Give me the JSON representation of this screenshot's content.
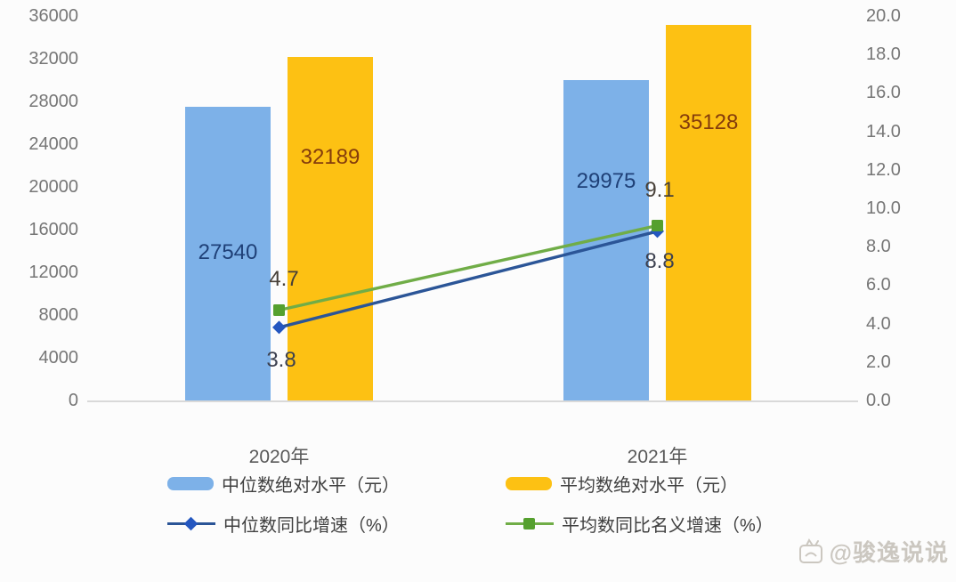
{
  "colors": {
    "background": "#FCFCFC",
    "axis_line": "#D9D9D9",
    "tick_text": "#767676",
    "category_text": "#595959",
    "legend_text": "#404040",
    "watermark": "#CBC7C0"
  },
  "chart_data": {
    "type": "combo-bar-line",
    "title": "",
    "categories": [
      "2020年",
      "2021年"
    ],
    "bar_series": [
      {
        "name": "中位数绝对水平（元）",
        "values": [
          27540,
          29975
        ],
        "color": "#7DB1E8",
        "label_color": "#1F4077",
        "axis": "left"
      },
      {
        "name": "平均数绝对水平（元）",
        "values": [
          32189,
          35128
        ],
        "color": "#FDC113",
        "label_color": "#843C0C",
        "axis": "left"
      }
    ],
    "line_series": [
      {
        "name": "中位数同比增速（%）",
        "values": [
          3.8,
          8.8
        ],
        "color": "#2B5597",
        "marker": "diamond",
        "marker_color": "#2457C0",
        "label_color": "#3D4150",
        "axis": "right"
      },
      {
        "name": "平均数同比名义增速（%）",
        "values": [
          4.7,
          9.1
        ],
        "color": "#70AD47",
        "marker": "square",
        "marker_color": "#55A02E",
        "label_color": "#474038",
        "axis": "right"
      }
    ],
    "left_axis": {
      "min": 0,
      "max": 36000,
      "step": 4000,
      "ticks": [
        "36000",
        "32000",
        "28000",
        "24000",
        "20000",
        "16000",
        "12000",
        "8000",
        "4000",
        "0"
      ]
    },
    "right_axis": {
      "min": 0.0,
      "max": 20.0,
      "step": 2.0,
      "ticks": [
        "20.0",
        "18.0",
        "16.0",
        "14.0",
        "12.0",
        "10.0",
        "8.0",
        "6.0",
        "4.0",
        "2.0",
        "0.0"
      ]
    },
    "grid": false,
    "legend_position": "bottom"
  },
  "watermark": {
    "text": "@骏逸说说"
  }
}
